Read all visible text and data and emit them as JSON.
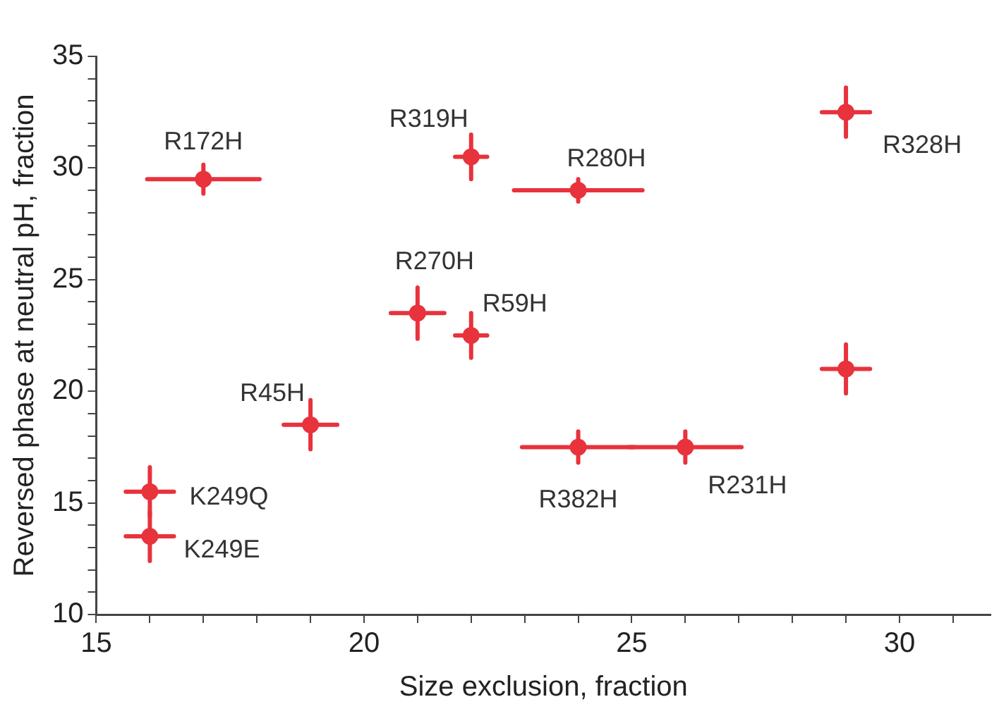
{
  "chart_data": {
    "type": "scatter",
    "xlabel": "Size exclusion, fraction",
    "ylabel": "Reversed phase at neutral pH, fraction",
    "x": [
      17,
      22,
      24,
      29,
      21,
      22,
      29,
      19,
      24,
      26,
      16,
      16
    ],
    "values": [
      29.5,
      30.5,
      29,
      32.5,
      23.5,
      22.5,
      21,
      18.5,
      17.5,
      17.5,
      15.5,
      13.5
    ],
    "xerrors": [
      1.05,
      0.3,
      1.2,
      0.45,
      0.5,
      0.3,
      0.45,
      0.5,
      1.05,
      1.05,
      0.45,
      0.45
    ],
    "errors": [
      0.65,
      1,
      0.5,
      1.1,
      1.15,
      1,
      1.1,
      1.1,
      0.7,
      0.7,
      1.1,
      1.1
    ],
    "color": "#e8323c",
    "marker": "circle",
    "grid": false,
    "legend": false,
    "xlim": [
      15,
      31.7
    ],
    "xticks": [
      15,
      {
        "value": 16,
        "label": null
      },
      {
        "value": 17,
        "label": null
      },
      {
        "value": 18,
        "label": null
      },
      {
        "value": 19,
        "label": null
      },
      20,
      {
        "value": 21,
        "label": null
      },
      {
        "value": 22,
        "label": null
      },
      {
        "value": 23,
        "label": null
      },
      {
        "value": 24,
        "label": null
      },
      25,
      {
        "value": 26,
        "label": null
      },
      {
        "value": 27,
        "label": null
      },
      {
        "value": 28,
        "label": null
      },
      {
        "value": 29,
        "label": null
      },
      30,
      {
        "value": 31,
        "label": null
      }
    ],
    "ylim": [
      10,
      35
    ],
    "yticks": [
      10,
      {
        "value": 11,
        "label": null
      },
      {
        "value": 12,
        "label": null
      },
      {
        "value": 13,
        "label": null
      },
      {
        "value": 14,
        "label": null
      },
      15,
      {
        "value": 16,
        "label": null
      },
      {
        "value": 17,
        "label": null
      },
      {
        "value": 18,
        "label": null
      },
      {
        "value": 19,
        "label": null
      },
      20,
      {
        "value": 21,
        "label": null
      },
      {
        "value": 22,
        "label": null
      },
      {
        "value": 23,
        "label": null
      },
      {
        "value": 24,
        "label": null
      },
      25,
      {
        "value": 26,
        "label": null
      },
      {
        "value": 27,
        "label": null
      },
      {
        "value": 28,
        "label": null
      },
      {
        "value": 29,
        "label": null
      },
      30,
      {
        "value": 31,
        "label": null
      },
      {
        "value": 32,
        "label": null
      },
      {
        "value": 33,
        "label": null
      },
      {
        "value": 34,
        "label": null
      },
      35
    ],
    "annotations": [
      {
        "text": "R172H",
        "x": 17,
        "y": 29.5
      },
      {
        "text": "R319H",
        "x": 22,
        "y": 30.5
      },
      {
        "text": "R280H",
        "x": 24,
        "y": 29
      },
      {
        "text": "R328H",
        "x": 29,
        "y": 32.5
      },
      {
        "text": "R270H",
        "x": 21,
        "y": 23.5
      },
      {
        "text": "R59H",
        "x": 22,
        "y": 22.5
      },
      {
        "text": "R45H",
        "x": 19,
        "y": 18.5
      },
      {
        "text": "R382H",
        "x": 24,
        "y": 17.5
      },
      {
        "text": "R231H",
        "x": 26,
        "y": 17.5
      },
      {
        "text": "K249Q",
        "x": 16,
        "y": 15.5
      },
      {
        "text": "K249E",
        "x": 16,
        "y": 13.5
      }
    ]
  }
}
